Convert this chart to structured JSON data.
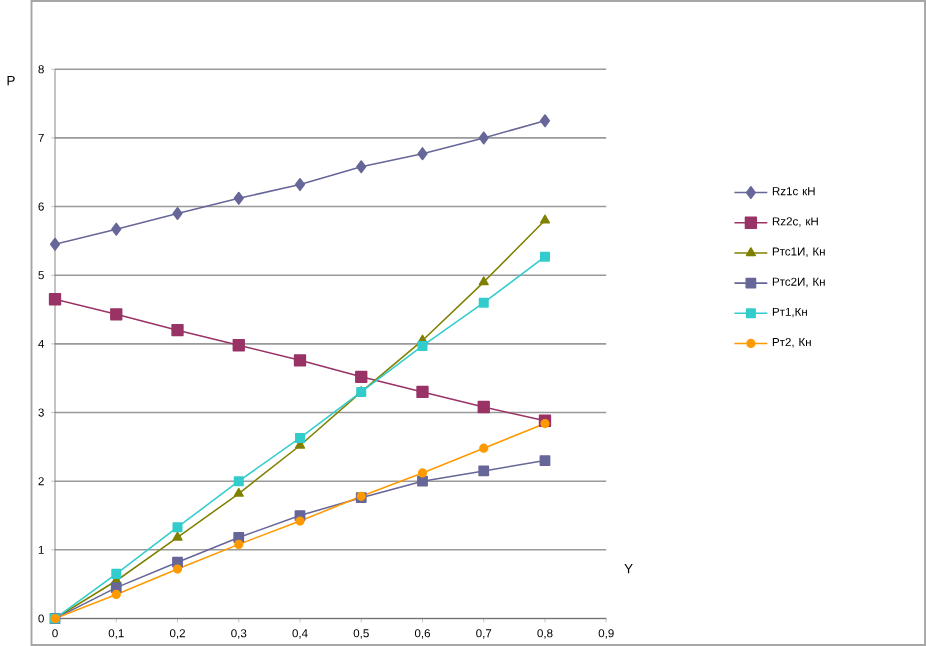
{
  "chart_data": {
    "type": "line",
    "xlabel": "Y",
    "ylabel": "Р",
    "x": [
      0,
      0.1,
      0.2,
      0.3,
      0.4,
      0.5,
      0.6,
      0.7,
      0.8
    ],
    "xlim": [
      0,
      0.9
    ],
    "ylim": [
      0,
      8
    ],
    "xticks": [
      0,
      {
        "value": 0.1,
        "label": "0,1"
      },
      {
        "value": 0.2,
        "label": "0,2"
      },
      {
        "value": 0.3,
        "label": "0,3"
      },
      {
        "value": 0.4,
        "label": "0,4"
      },
      {
        "value": 0.5,
        "label": "0,5"
      },
      {
        "value": 0.6,
        "label": "0,6"
      },
      {
        "value": 0.7,
        "label": "0,7"
      },
      {
        "value": 0.8,
        "label": "0,8"
      },
      {
        "value": 0.9,
        "label": "0,9"
      }
    ],
    "yticks": [
      0,
      1,
      2,
      3,
      4,
      5,
      6,
      7,
      8
    ],
    "grid": "y",
    "legend": "right",
    "series": [
      {
        "name": "Rz1c кН",
        "color": "#666699",
        "marker": "diamond",
        "values": [
          5.45,
          5.67,
          5.9,
          6.12,
          6.32,
          6.58,
          6.77,
          7.0,
          7.25
        ]
      },
      {
        "name": "Rz2c, кН",
        "color": "#993366",
        "marker": "square",
        "values": [
          4.65,
          4.43,
          4.2,
          3.98,
          3.76,
          3.52,
          3.3,
          3.08,
          2.88
        ]
      },
      {
        "name": "Ртс1И, Кн",
        "color": "#808000",
        "marker": "triangle",
        "values": [
          0,
          0.55,
          1.18,
          1.82,
          2.52,
          3.3,
          4.05,
          4.9,
          5.8
        ]
      },
      {
        "name": "Ртс2И, Кн",
        "color": "#666699",
        "marker": "square",
        "values": [
          0,
          0.45,
          0.82,
          1.18,
          1.5,
          1.76,
          2.0,
          2.15,
          2.3
        ]
      },
      {
        "name": "Рт1,Кн",
        "color": "#33cccc",
        "marker": "square",
        "values": [
          0,
          0.65,
          1.33,
          2.0,
          2.63,
          3.3,
          3.97,
          4.6,
          5.27
        ]
      },
      {
        "name": "Рт2, Кн",
        "color": "#ff9900",
        "marker": "circle",
        "values": [
          0,
          0.35,
          0.72,
          1.08,
          1.42,
          1.78,
          2.12,
          2.48,
          2.84
        ]
      }
    ]
  }
}
